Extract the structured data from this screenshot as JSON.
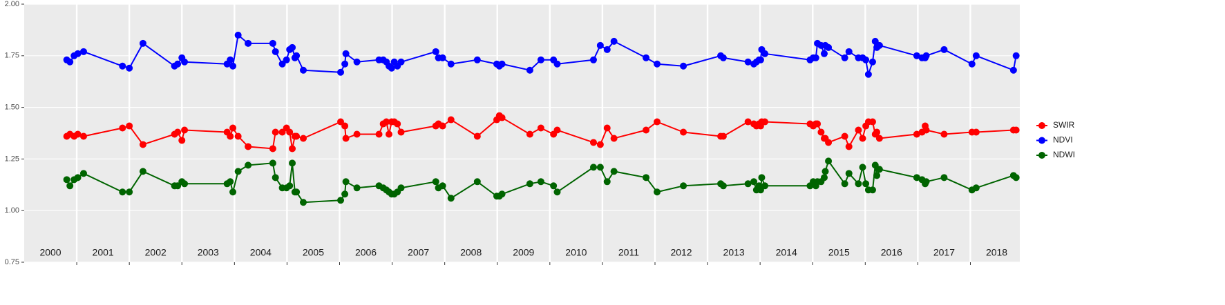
{
  "chart_data": {
    "type": "line",
    "x": [
      2000.81,
      2000.87,
      2000.95,
      2001.02,
      2001.13,
      2001.87,
      2002.0,
      2002.26,
      2002.86,
      2002.92,
      2003.0,
      2003.05,
      2003.86,
      2003.92,
      2003.97,
      2004.07,
      2004.26,
      2004.73,
      2004.78,
      2004.91,
      2004.99,
      2005.05,
      2005.1,
      2005.15,
      2005.18,
      2005.31,
      2006.02,
      2006.1,
      2006.12,
      2006.33,
      2006.75,
      2006.83,
      2006.89,
      2006.94,
      2006.99,
      2007.04,
      2007.1,
      2007.17,
      2007.83,
      2007.88,
      2007.96,
      2008.12,
      2008.62,
      2008.99,
      2009.04,
      2009.09,
      2009.62,
      2009.83,
      2010.07,
      2010.14,
      2010.83,
      2010.96,
      2011.09,
      2011.22,
      2011.83,
      2012.04,
      2012.54,
      2013.25,
      2013.3,
      2013.77,
      2013.88,
      2013.93,
      2013.98,
      2014.01,
      2014.03,
      2014.09,
      2014.95,
      2015.01,
      2015.06,
      2015.09,
      2015.16,
      2015.22,
      2015.24,
      2015.3,
      2015.61,
      2015.69,
      2015.87,
      2015.95,
      2016.01,
      2016.06,
      2016.14,
      2016.19,
      2016.22,
      2016.27,
      2016.98,
      2017.08,
      2017.14,
      2017.16,
      2017.5,
      2018.03,
      2018.11,
      2018.82,
      2018.87
    ],
    "series": [
      {
        "name": "SWIR",
        "color": "#ff0000",
        "values": [
          1.36,
          1.37,
          1.36,
          1.37,
          1.36,
          1.4,
          1.41,
          1.32,
          1.37,
          1.38,
          1.34,
          1.39,
          1.38,
          1.36,
          1.4,
          1.36,
          1.31,
          1.3,
          1.38,
          1.38,
          1.4,
          1.38,
          1.3,
          1.36,
          1.36,
          1.35,
          1.43,
          1.41,
          1.35,
          1.37,
          1.37,
          1.42,
          1.43,
          1.37,
          1.43,
          1.43,
          1.42,
          1.38,
          1.41,
          1.42,
          1.41,
          1.44,
          1.36,
          1.44,
          1.46,
          1.45,
          1.37,
          1.4,
          1.37,
          1.39,
          1.33,
          1.32,
          1.4,
          1.35,
          1.39,
          1.43,
          1.38,
          1.36,
          1.36,
          1.43,
          1.42,
          1.41,
          1.42,
          1.41,
          1.43,
          1.43,
          1.42,
          1.41,
          1.42,
          1.42,
          1.38,
          1.35,
          1.35,
          1.33,
          1.36,
          1.31,
          1.39,
          1.35,
          1.41,
          1.43,
          1.43,
          1.37,
          1.38,
          1.35,
          1.37,
          1.38,
          1.41,
          1.39,
          1.37,
          1.38,
          1.38,
          1.39,
          1.39
        ]
      },
      {
        "name": "NDVI",
        "color": "#0000ff",
        "values": [
          1.73,
          1.72,
          1.75,
          1.76,
          1.77,
          1.7,
          1.69,
          1.81,
          1.7,
          1.71,
          1.74,
          1.72,
          1.71,
          1.73,
          1.7,
          1.85,
          1.81,
          1.81,
          1.77,
          1.71,
          1.73,
          1.78,
          1.79,
          1.74,
          1.75,
          1.68,
          1.67,
          1.71,
          1.76,
          1.72,
          1.73,
          1.73,
          1.72,
          1.7,
          1.69,
          1.72,
          1.7,
          1.72,
          1.77,
          1.74,
          1.74,
          1.71,
          1.73,
          1.71,
          1.7,
          1.71,
          1.68,
          1.73,
          1.73,
          1.71,
          1.73,
          1.8,
          1.78,
          1.82,
          1.74,
          1.71,
          1.7,
          1.75,
          1.74,
          1.72,
          1.71,
          1.72,
          1.73,
          1.73,
          1.78,
          1.76,
          1.73,
          1.74,
          1.74,
          1.81,
          1.8,
          1.76,
          1.8,
          1.79,
          1.74,
          1.77,
          1.74,
          1.74,
          1.73,
          1.66,
          1.72,
          1.82,
          1.79,
          1.8,
          1.75,
          1.74,
          1.74,
          1.75,
          1.78,
          1.71,
          1.75,
          1.68,
          1.75
        ]
      },
      {
        "name": "NDWI",
        "color": "#006400",
        "values": [
          1.15,
          1.12,
          1.15,
          1.16,
          1.18,
          1.09,
          1.09,
          1.19,
          1.12,
          1.12,
          1.14,
          1.13,
          1.13,
          1.14,
          1.09,
          1.19,
          1.22,
          1.23,
          1.16,
          1.11,
          1.11,
          1.12,
          1.23,
          1.09,
          1.09,
          1.04,
          1.05,
          1.08,
          1.14,
          1.11,
          1.12,
          1.11,
          1.1,
          1.09,
          1.08,
          1.08,
          1.09,
          1.11,
          1.14,
          1.11,
          1.12,
          1.06,
          1.14,
          1.07,
          1.07,
          1.08,
          1.13,
          1.14,
          1.12,
          1.09,
          1.21,
          1.21,
          1.14,
          1.19,
          1.16,
          1.09,
          1.12,
          1.13,
          1.12,
          1.13,
          1.14,
          1.1,
          1.12,
          1.1,
          1.16,
          1.12,
          1.12,
          1.14,
          1.12,
          1.14,
          1.14,
          1.16,
          1.19,
          1.24,
          1.13,
          1.18,
          1.13,
          1.21,
          1.13,
          1.1,
          1.1,
          1.22,
          1.17,
          1.2,
          1.16,
          1.15,
          1.13,
          1.14,
          1.16,
          1.1,
          1.11,
          1.17,
          1.16
        ]
      }
    ],
    "xlim": [
      2000,
      2018.94
    ],
    "xticks": [
      2001,
      2002,
      2003,
      2004,
      2005,
      2006,
      2007,
      2008,
      2009,
      2010,
      2011,
      2012,
      2013,
      2014,
      2015,
      2016,
      2017,
      2018
    ],
    "year_labels": [
      2000,
      2001,
      2002,
      2003,
      2004,
      2005,
      2006,
      2007,
      2008,
      2009,
      2010,
      2011,
      2012,
      2013,
      2014,
      2015,
      2016,
      2017,
      2018
    ],
    "ylim": [
      0.75,
      2.0
    ],
    "yticks": [
      0.75,
      {
        "value": 1,
        "label": "1.00"
      },
      1.25,
      {
        "value": 1.5,
        "label": "1.50"
      },
      1.75,
      {
        "value": 2,
        "label": "2.00"
      }
    ],
    "grid": true,
    "legend": "right"
  }
}
